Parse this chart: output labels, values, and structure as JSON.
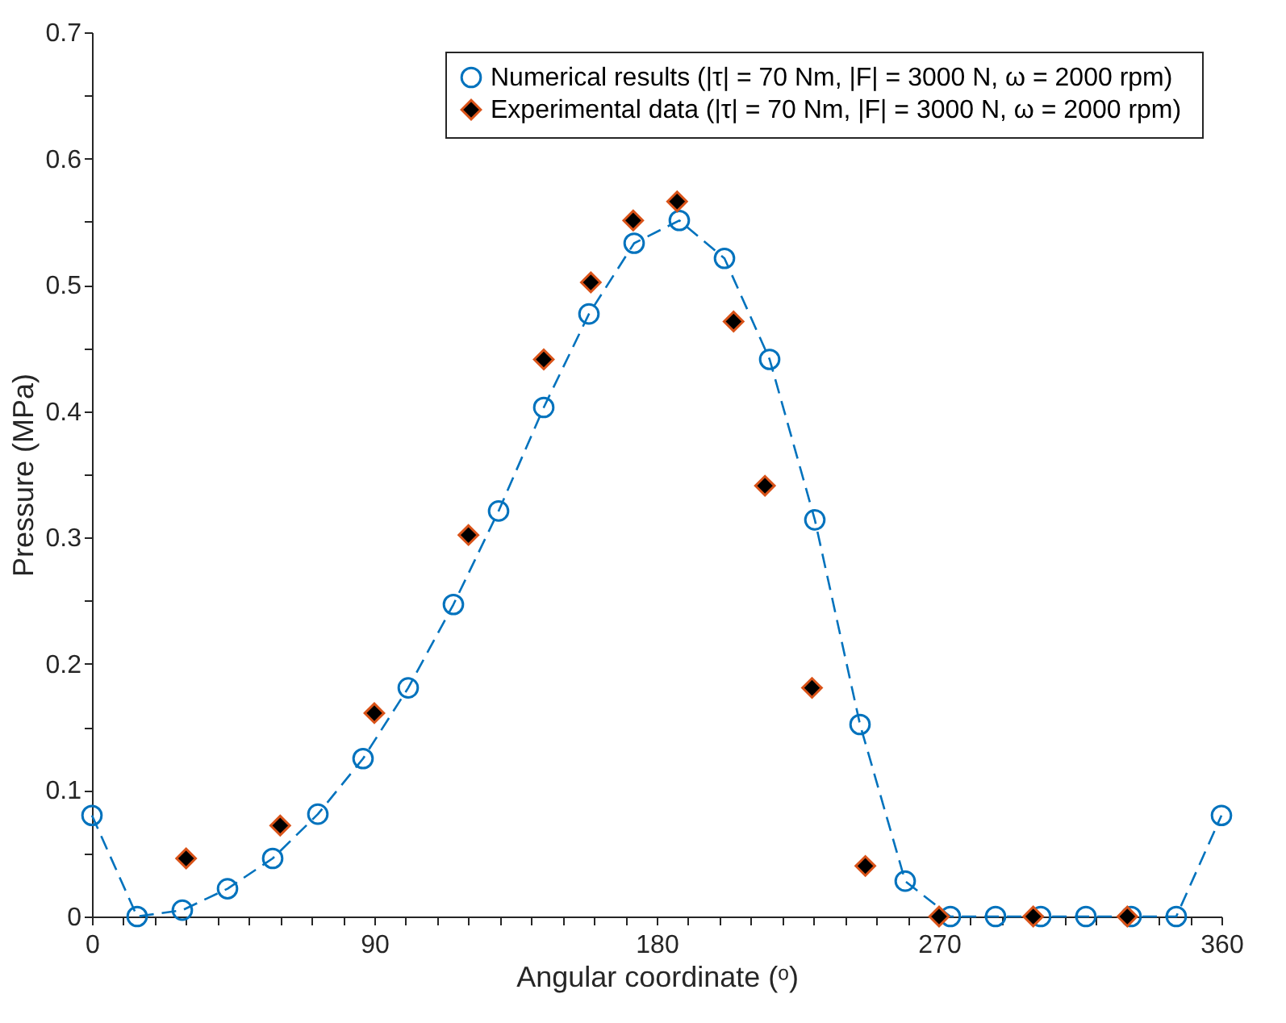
{
  "chart_data": {
    "type": "line",
    "xlabel": "Angular coordinate (ᵒ)",
    "ylabel": "Pressure (MPa)",
    "xlim": [
      0,
      360
    ],
    "ylim": [
      0,
      0.7
    ],
    "xticks": [
      0,
      {
        "value": 10,
        "label": null
      },
      {
        "value": 20,
        "label": null
      },
      {
        "value": 30,
        "label": null
      },
      {
        "value": 40,
        "label": null
      },
      {
        "value": 50,
        "label": null
      },
      {
        "value": 60,
        "label": null
      },
      {
        "value": 70,
        "label": null
      },
      {
        "value": 80,
        "label": null
      },
      90,
      {
        "value": 100,
        "label": null
      },
      {
        "value": 110,
        "label": null
      },
      {
        "value": 120,
        "label": null
      },
      {
        "value": 130,
        "label": null
      },
      {
        "value": 140,
        "label": null
      },
      {
        "value": 150,
        "label": null
      },
      {
        "value": 160,
        "label": null
      },
      {
        "value": 170,
        "label": null
      },
      180,
      {
        "value": 190,
        "label": null
      },
      {
        "value": 200,
        "label": null
      },
      {
        "value": 210,
        "label": null
      },
      {
        "value": 220,
        "label": null
      },
      {
        "value": 230,
        "label": null
      },
      {
        "value": 240,
        "label": null
      },
      {
        "value": 250,
        "label": null
      },
      {
        "value": 260,
        "label": null
      },
      270,
      {
        "value": 280,
        "label": null
      },
      {
        "value": 290,
        "label": null
      },
      {
        "value": 300,
        "label": null
      },
      {
        "value": 310,
        "label": null
      },
      {
        "value": 320,
        "label": null
      },
      {
        "value": 330,
        "label": null
      },
      {
        "value": 340,
        "label": null
      },
      {
        "value": 350,
        "label": null
      },
      360
    ],
    "yticks": [
      0,
      {
        "value": 0.05,
        "label": null
      },
      0.1,
      {
        "value": 0.15,
        "label": null
      },
      0.2,
      {
        "value": 0.25,
        "label": null
      },
      0.3,
      {
        "value": 0.35,
        "label": null
      },
      0.4,
      {
        "value": 0.45,
        "label": null
      },
      0.5,
      {
        "value": 0.55,
        "label": null
      },
      0.6,
      {
        "value": 0.65,
        "label": null
      },
      0.7
    ],
    "grid": false,
    "legend": "top right",
    "series": [
      {
        "name": "Numerical results  (|τ| = 70 Nm, |F| = 3000 N, ω = 2000 rpm)",
        "marker": "circle",
        "line_style": "dashed",
        "color": "#0072bd",
        "x": [
          0,
          14.4,
          28.8,
          43.2,
          57.6,
          72,
          86.4,
          100.8,
          115.2,
          129.6,
          144,
          158.4,
          172.8,
          187.2,
          201.6,
          216,
          230.4,
          244.8,
          259.2,
          273.6,
          288,
          302.4,
          316.8,
          331.2,
          345.6,
          360
        ],
        "values": [
          0.08,
          0,
          0.005,
          0.022,
          0.046,
          0.081,
          0.125,
          0.181,
          0.247,
          0.321,
          0.403,
          0.477,
          0.533,
          0.551,
          0.521,
          0.441,
          0.314,
          0.152,
          0.028,
          0,
          0,
          0,
          0,
          0,
          0,
          0.08
        ]
      },
      {
        "name": "Experimental data  (|τ| = 70 Nm, |F| = 3000 N, ω = 2000 rpm)",
        "type": "scatter",
        "marker": "diamond",
        "color": "#d95319",
        "x": [
          30,
          60,
          90,
          120,
          144,
          159,
          172.5,
          186.5,
          204.5,
          214.5,
          229.5,
          246.5,
          270,
          300,
          330
        ],
        "values": [
          0.046,
          0.072,
          0.161,
          0.302,
          0.441,
          0.502,
          0.551,
          0.566,
          0.471,
          0.341,
          0.181,
          0.04,
          0,
          0,
          0
        ]
      }
    ]
  }
}
